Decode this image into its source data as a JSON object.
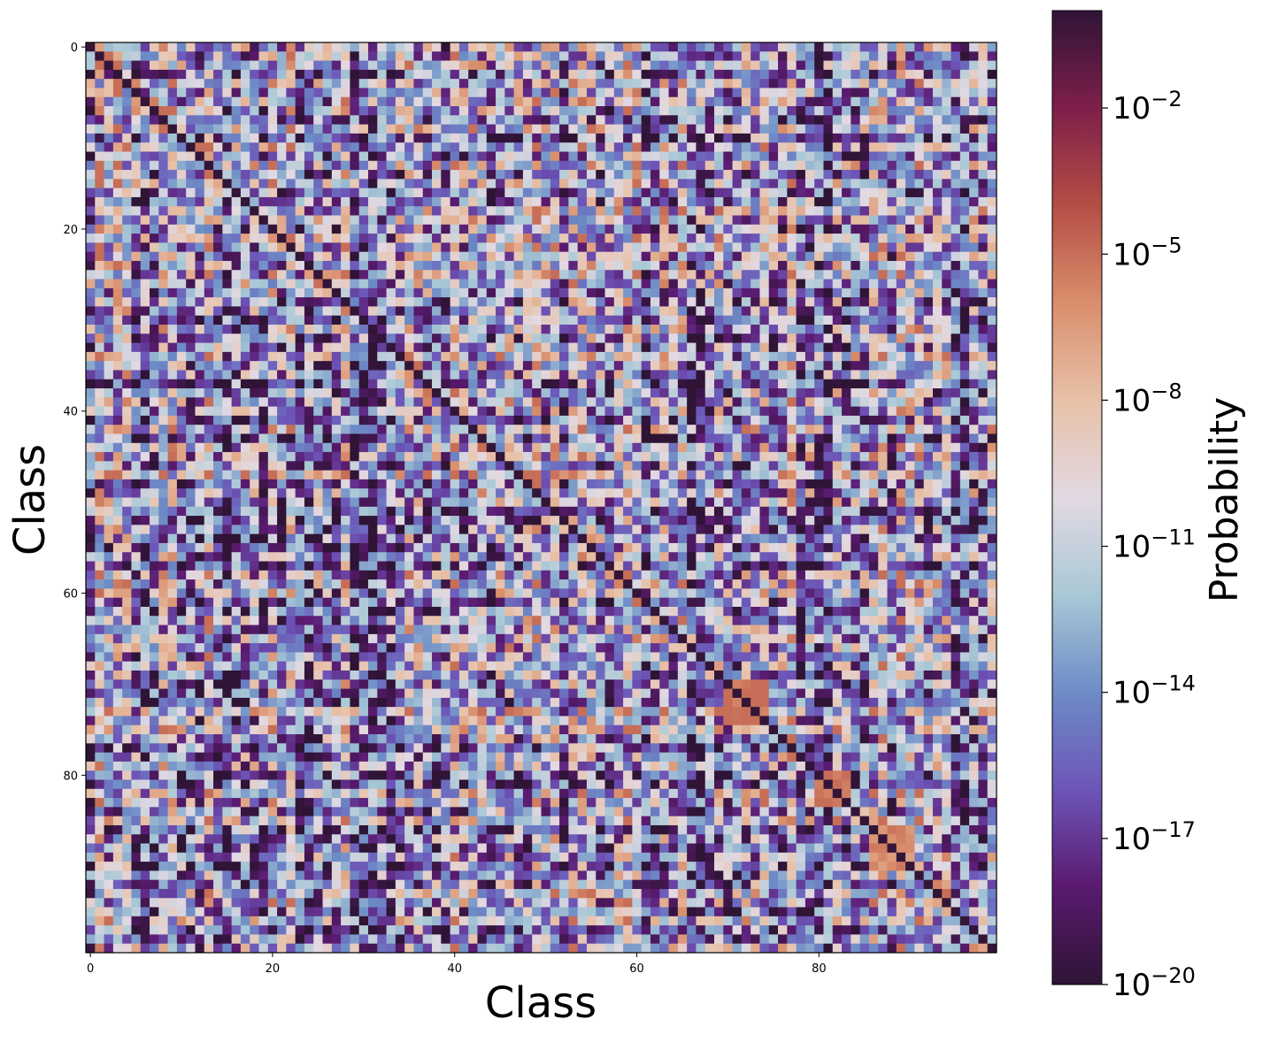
{
  "chart_data": {
    "type": "heatmap",
    "n_classes": 100,
    "xlabel": "Class",
    "ylabel": "Class",
    "x_ticks": [
      0,
      20,
      40,
      60,
      80
    ],
    "y_ticks": [
      0,
      20,
      40,
      60,
      80
    ],
    "colorbar": {
      "label": "Probability",
      "scale": "log",
      "range_exponent": [
        -20,
        0
      ],
      "tick_exponents": [
        -2,
        -5,
        -8,
        -11,
        -14,
        -17,
        -20
      ],
      "tick_labels": [
        "10^-2",
        "10^-5",
        "10^-8",
        "10^-11",
        "10^-14",
        "10^-17",
        "10^-20"
      ],
      "colormap": "twilight_shifted",
      "colormap_stops": [
        "#2f1436",
        "#5a1a6f",
        "#6d55b8",
        "#6d8bc6",
        "#a9c8d6",
        "#e2d9e2",
        "#e8c1a8",
        "#d98e6c",
        "#b44e45",
        "#7e1f4a",
        "#2f1436"
      ]
    },
    "diagonal_value_exponent": -0.1,
    "off_diagonal_description_values": {
      "typical_exponent_range": [
        -20,
        -7
      ],
      "blocks": [
        {
          "rows": [
            70,
            74
          ],
          "cols": [
            70,
            74
          ],
          "exponent": -5
        },
        {
          "rows": [
            86,
            90
          ],
          "cols": [
            86,
            90
          ],
          "exponent": -6
        },
        {
          "rows": [
            80,
            83
          ],
          "cols": [
            80,
            83
          ],
          "exponent": -5
        }
      ]
    }
  }
}
